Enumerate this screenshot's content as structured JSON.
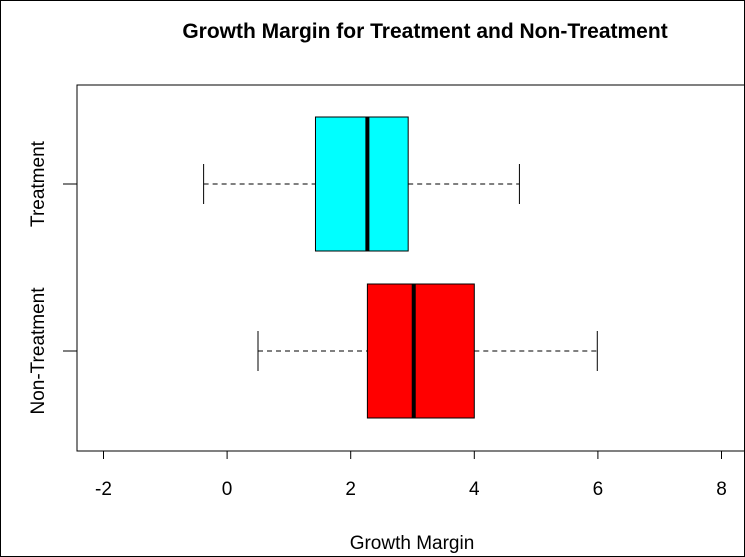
{
  "chart_data": {
    "type": "boxplot",
    "orientation": "horizontal",
    "title": "Growth Margin for Treatment and Non-Treatment",
    "xlabel": "Growth Margin",
    "ylabel": "",
    "xlim": [
      -2.4,
      8.1
    ],
    "x_ticks": [
      -2,
      0,
      2,
      4,
      6,
      8
    ],
    "x_tick_labels": [
      "-2",
      "0",
      "2",
      "4",
      "6",
      "8"
    ],
    "categories": [
      "Treatment",
      "Non-Treatment"
    ],
    "series": [
      {
        "name": "Treatment",
        "color": "#00ffff",
        "stats": {
          "whisker_low": -0.38,
          "q1": 1.43,
          "median": 2.27,
          "q3": 2.93,
          "whisker_high": 4.73
        }
      },
      {
        "name": "Non-Treatment",
        "color": "#ff0000",
        "stats": {
          "whisker_low": 0.5,
          "q1": 2.27,
          "median": 3.02,
          "q3": 4.0,
          "whisker_high": 5.99
        }
      }
    ],
    "grid": false,
    "legend": "none"
  }
}
